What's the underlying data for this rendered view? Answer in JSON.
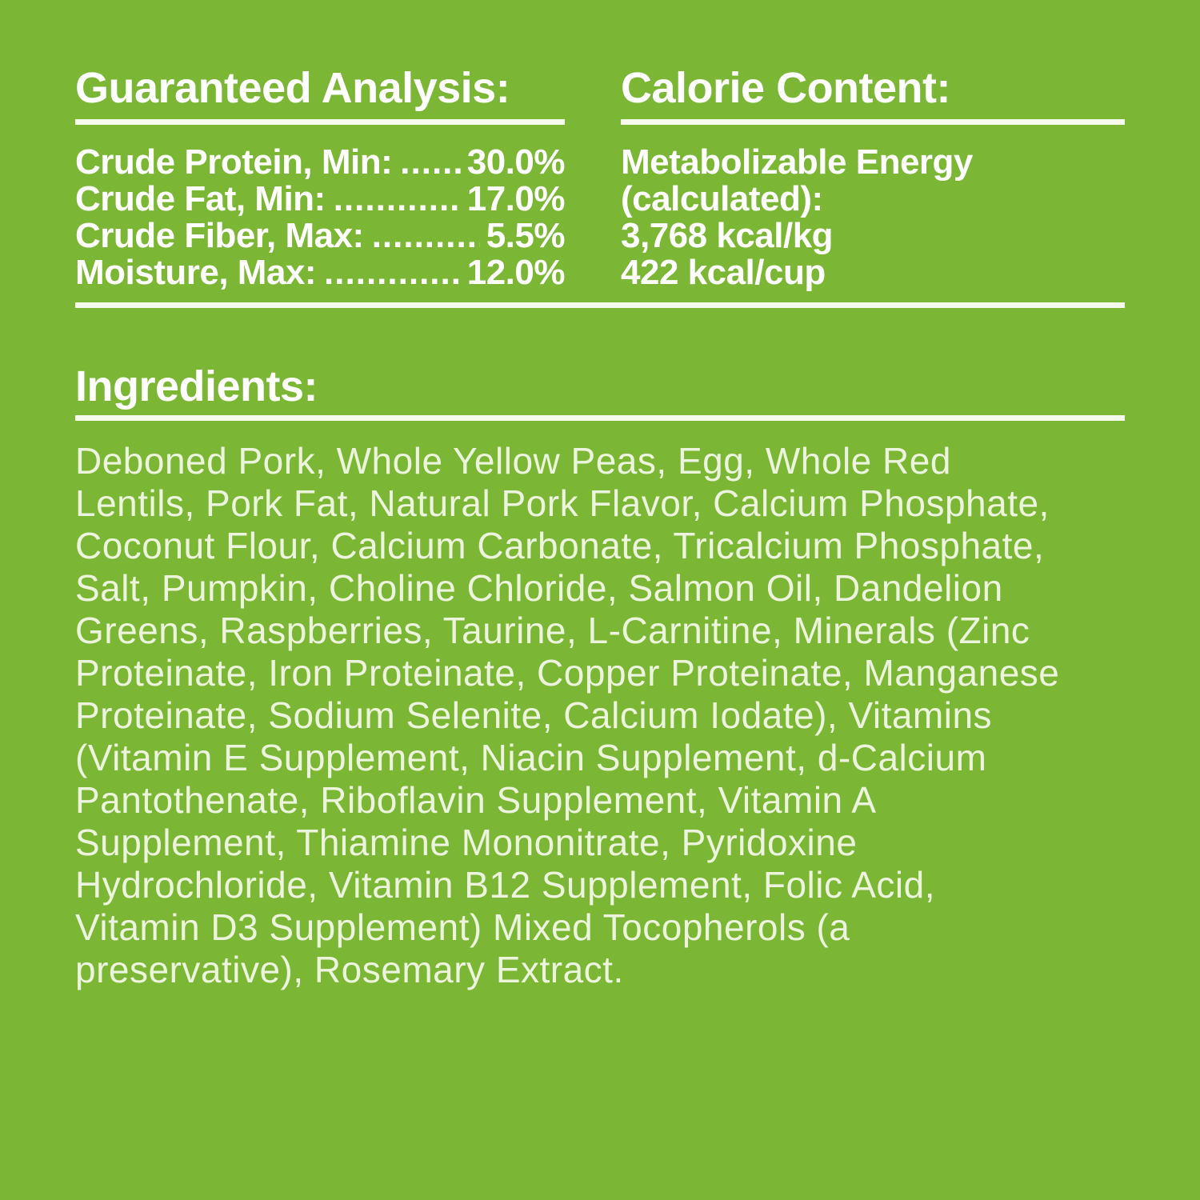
{
  "colors": {
    "background_green": "#7bb735",
    "heading_white": "#ffffff",
    "body_offwhite": "#edf4de",
    "divider_white": "#f6faec"
  },
  "guaranteed_analysis": {
    "title": "Guaranteed Analysis:",
    "rows": [
      {
        "label": "Crude Protein, Min:",
        "dots": "........................",
        "value": "30.0%"
      },
      {
        "label": "Crude Fat, Min:",
        "dots": "........................",
        "value": "17.0%"
      },
      {
        "label": "Crude Fiber, Max:",
        "dots": "........................",
        "value": "5.5%"
      },
      {
        "label": "Moisture, Max:",
        "dots": "........................",
        "value": "12.0%"
      }
    ]
  },
  "calorie_content": {
    "title": "Calorie Content:",
    "body": "Metabolizable Energy\n(calculated):\n3,768 kcal/kg\n422 kcal/cup"
  },
  "ingredients": {
    "title": "Ingredients:",
    "body": "Deboned Pork, Whole Yellow Peas, Egg, Whole Red\nLentils, Pork Fat, Natural Pork Flavor, Calcium Phosphate,\nCoconut Flour, Calcium Carbonate, Tricalcium Phosphate,\nSalt, Pumpkin, Choline Chloride, Salmon Oil, Dandelion\nGreens, Raspberries, Taurine, L-Carnitine, Minerals (Zinc\nProteinate, Iron Proteinate, Copper Proteinate, Manganese\nProteinate, Sodium Selenite, Calcium Iodate), Vitamins\n(Vitamin E Supplement, Niacin Supplement, d-Calcium\nPantothenate, Riboflavin Supplement, Vitamin A\nSupplement, Thiamine Mononitrate, Pyridoxine\nHydrochloride, Vitamin B12 Supplement, Folic Acid,\nVitamin D3 Supplement) Mixed Tocopherols (a\npreservative), Rosemary Extract."
  }
}
